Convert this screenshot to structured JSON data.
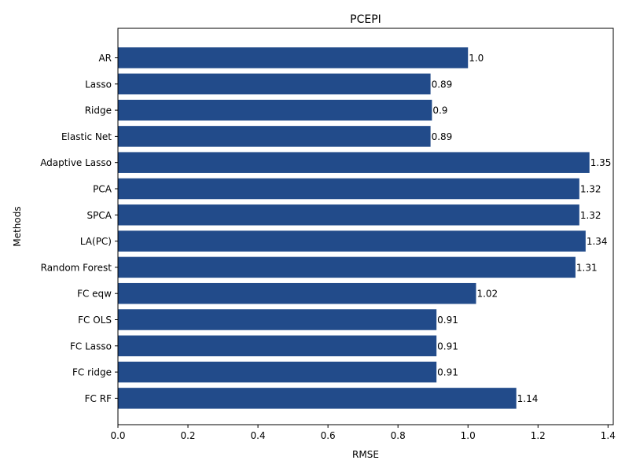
{
  "chart_data": {
    "type": "bar",
    "orientation": "horizontal",
    "title": "PCEPI",
    "xlabel": "RMSE",
    "ylabel": "Methods",
    "categories": [
      "AR",
      "Lasso",
      "Ridge",
      "Elastic Net",
      "Adaptive Lasso",
      "PCA",
      "SPCA",
      "LA(PC)",
      "Random Forest",
      "FC eqw",
      "FC OLS",
      "FC Lasso",
      "FC ridge",
      "FC RF"
    ],
    "values": [
      1.0,
      0.893,
      0.897,
      0.893,
      1.347,
      1.318,
      1.318,
      1.336,
      1.307,
      1.023,
      0.91,
      0.91,
      0.91,
      1.138
    ],
    "data_labels": [
      "1.0",
      "0.89",
      "0.9",
      "0.89",
      "1.35",
      "1.32",
      "1.32",
      "1.34",
      "1.31",
      "1.02",
      "0.91",
      "0.91",
      "0.91",
      "1.14"
    ],
    "xticks": [
      "0.0",
      "0.2",
      "0.4",
      "0.6",
      "0.8",
      "1.0",
      "1.2",
      "1.4"
    ],
    "xlim": [
      0,
      1.415
    ],
    "bar_color": "#224b8a",
    "grid": false,
    "legend": false
  }
}
